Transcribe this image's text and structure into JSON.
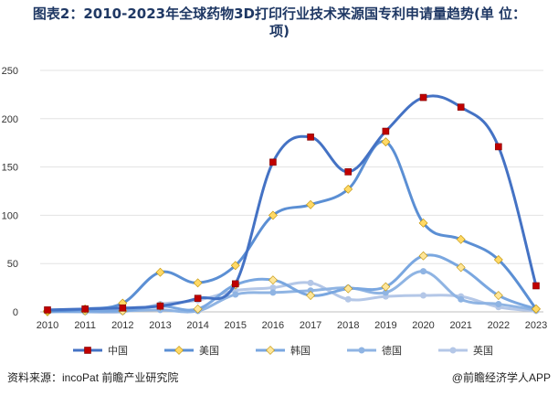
{
  "title": {
    "line1": "图表2：2010-2023年全球药物3D打印行业技术来源国专利申请量趋势(单 位：",
    "line2": "项)"
  },
  "chart_data": {
    "type": "line",
    "x": [
      "2010",
      "2011",
      "2012",
      "2013",
      "2014",
      "2015",
      "2016",
      "2017",
      "2018",
      "2019",
      "2020",
      "2021",
      "2022",
      "2023"
    ],
    "ylim": [
      0,
      250
    ],
    "yticks": [
      0,
      50,
      100,
      150,
      200,
      250
    ],
    "grid": true,
    "legend_position": "bottom",
    "series": [
      {
        "name": "中国",
        "color": "#4472c4",
        "marker": "square",
        "marker_color": "#c00000",
        "values": [
          2,
          3,
          4,
          6,
          14,
          29,
          155,
          181,
          145,
          187,
          222,
          212,
          171,
          27
        ]
      },
      {
        "name": "美国",
        "color": "#5b8fd4",
        "marker": "diamond",
        "marker_color": "#ffd966",
        "values": [
          1,
          3,
          9,
          41,
          30,
          48,
          100,
          111,
          127,
          176,
          92,
          75,
          54,
          3
        ]
      },
      {
        "name": "韩国",
        "color": "#7aa7e0",
        "marker": "diamond",
        "marker_color": "#ffe699",
        "values": [
          0,
          1,
          1,
          6,
          3,
          28,
          33,
          17,
          24,
          26,
          58,
          46,
          17,
          3
        ]
      },
      {
        "name": "德国",
        "color": "#8fb4e3",
        "marker": "circle",
        "marker_color": "#8fb4e3",
        "values": [
          1,
          0,
          1,
          2,
          1,
          18,
          20,
          22,
          25,
          20,
          42,
          13,
          8,
          2
        ]
      },
      {
        "name": "英国",
        "color": "#b4c7e7",
        "marker": "circle",
        "marker_color": "#b4c7e7",
        "values": [
          0,
          0,
          0,
          8,
          12,
          22,
          25,
          30,
          13,
          16,
          17,
          16,
          5,
          1
        ]
      }
    ]
  },
  "footer": {
    "source": "资料来源：incoPat 前瞻产业研究院",
    "brand": "@前瞻经济学人APP"
  }
}
